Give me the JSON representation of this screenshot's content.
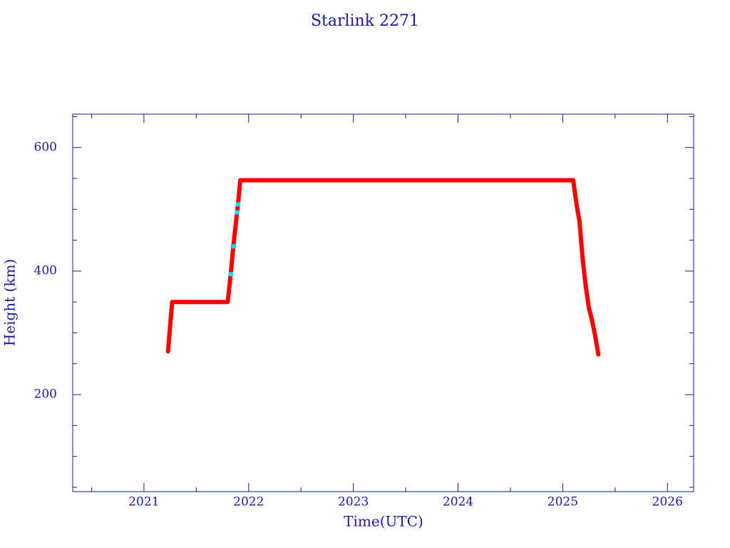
{
  "chart_data": {
    "type": "scatter",
    "title": "Starlink 2271",
    "x_label": "Time(UTC)",
    "y_label": "Height (km)",
    "xlim": [
      2020.32,
      2026.25
    ],
    "ylim": [
      43,
      654
    ],
    "xticks": [
      2021,
      2022,
      2023,
      2024,
      2025,
      2026
    ],
    "xminorticks": [
      2020.5,
      2021.5,
      2022.5,
      2023.5,
      2024.5,
      2025.5
    ],
    "yticks": [
      200,
      400,
      600
    ],
    "yminorticks": [
      50,
      100,
      150,
      250,
      300,
      350,
      450,
      500,
      550,
      650
    ],
    "series": [
      {
        "color": "#ff0000",
        "x": [
          2021.23,
          2021.25,
          2021.27,
          2021.4,
          2021.6,
          2021.8,
          2021.82,
          2021.86,
          2021.9,
          2021.92,
          2022.2,
          2022.6,
          2023.0,
          2023.5,
          2024.0,
          2024.5,
          2025.0,
          2025.1,
          2025.13,
          2025.16,
          2025.19,
          2025.22,
          2025.25,
          2025.28,
          2025.31,
          2025.34
        ],
        "values": [
          270,
          310,
          350,
          350,
          350,
          350,
          380,
          450,
          510,
          547,
          547,
          547,
          547,
          547,
          547,
          547,
          547,
          547,
          510,
          480,
          420,
          375,
          340,
          320,
          295,
          265
        ]
      },
      {
        "color": "#00e5ee",
        "x": [
          2021.83,
          2021.86,
          2021.89,
          2021.9
        ],
        "values": [
          395,
          440,
          495,
          508
        ]
      }
    ]
  }
}
